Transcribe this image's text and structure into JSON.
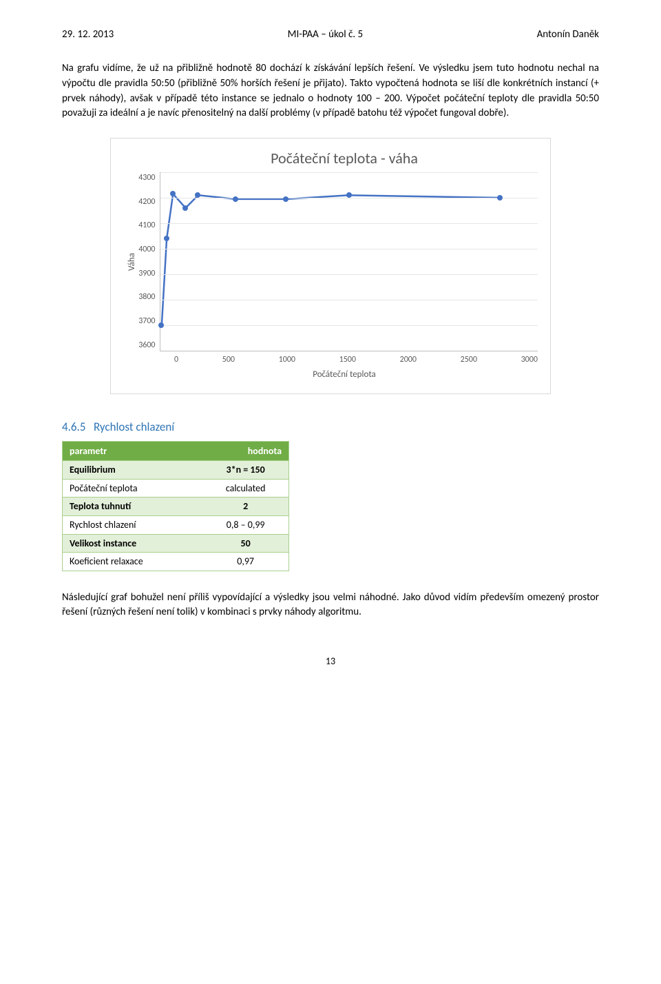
{
  "header": {
    "date": "29. 12. 2013",
    "course": "MI-PAA – úkol č. 5",
    "author": "Antonín Daněk"
  },
  "paragraph1": "Na grafu vidíme, že už na přibližně hodnotě 80 dochází k získávání lepších řešení. Ve výsledku jsem tuto hodnotu nechal na výpočtu dle pravidla 50:50 (přibližně 50% horších řešení je přijato). Takto vypočtená hodnota se liší dle konkrétních instancí (+ prvek náhody), avšak v případě této instance se jednalo o hodnoty 100 – 200. Výpočet počáteční teploty dle pravidla 50:50 považuji za ideální a je navíc přenositelný na další problémy (v případě batohu též výpočet fungoval dobře).",
  "chart": {
    "type": "line-scatter",
    "title": "Počáteční teplota - váha",
    "x_label": "Počáteční teplota",
    "y_label": "Váha",
    "y_ticks": [
      "4300",
      "4200",
      "4100",
      "4000",
      "3900",
      "3800",
      "3700",
      "3600"
    ],
    "x_ticks": [
      "0",
      "500",
      "1000",
      "1500",
      "2000",
      "2500",
      "3000"
    ],
    "x_min": 0,
    "x_max": 3000,
    "y_min": 3600,
    "y_max": 4300,
    "line_color": "#4472c4",
    "marker_color": "#4472c4",
    "line_width": 2.5,
    "marker_size": 8,
    "grid_color": "#e6e6e6",
    "background_color": "#ffffff",
    "border_color": "#d9d9d9",
    "points": [
      {
        "x": 10,
        "y": 3700
      },
      {
        "x": 50,
        "y": 4040
      },
      {
        "x": 100,
        "y": 4215
      },
      {
        "x": 200,
        "y": 4160
      },
      {
        "x": 300,
        "y": 4210
      },
      {
        "x": 600,
        "y": 4195
      },
      {
        "x": 1000,
        "y": 4195
      },
      {
        "x": 1500,
        "y": 4210
      },
      {
        "x": 2700,
        "y": 4200
      }
    ]
  },
  "section": {
    "number": "4.6.5",
    "title": "Rychlost chlazení"
  },
  "table": {
    "header_bg": "#70ad47",
    "row_odd_bg": "#e2efd9",
    "row_even_bg": "#ffffff",
    "border_color": "#a8d08d",
    "columns": [
      "parametr",
      "hodnota"
    ],
    "rows": [
      [
        "Equilibrium",
        "3*n = 150"
      ],
      [
        "Počáteční teplota",
        "calculated"
      ],
      [
        "Teplota tuhnutí",
        "2"
      ],
      [
        "Rychlost chlazení",
        "0,8 – 0,99"
      ],
      [
        "Velikost instance",
        "50"
      ],
      [
        "Koeficient relaxace",
        "0,97"
      ]
    ],
    "bold_rows": [
      0,
      2,
      4
    ]
  },
  "paragraph2": "Následující graf bohužel není příliš vypovídající a výsledky jsou velmi náhodné. Jako důvod vidím především omezený prostor řešení (různých řešení není tolik) v kombinaci s prvky náhody algoritmu.",
  "page_number": "13"
}
